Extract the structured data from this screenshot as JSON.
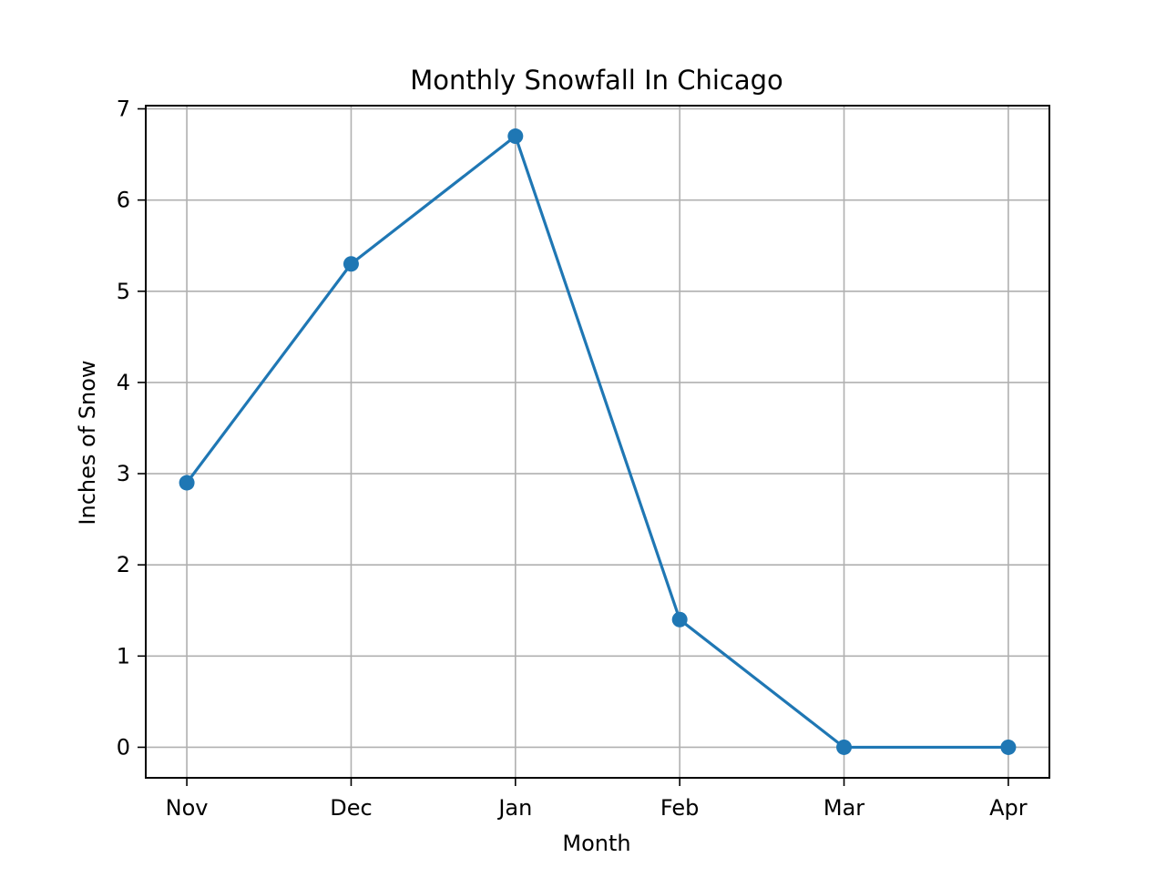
{
  "chart_data": {
    "type": "line",
    "title": "Monthly Snowfall In Chicago",
    "xlabel": "Month",
    "ylabel": "Inches of Snow",
    "categories": [
      "Nov",
      "Dec",
      "Jan",
      "Feb",
      "Mar",
      "Apr"
    ],
    "series": [
      {
        "values": [
          2.9,
          5.3,
          6.7,
          1.4,
          0,
          0
        ],
        "color": "#1f77b4",
        "marker": "circle"
      }
    ],
    "ylim": [
      -0.335,
      7.035
    ],
    "yticks": [
      0,
      1,
      2,
      3,
      4,
      5,
      6,
      7
    ],
    "grid": true,
    "legend": "none"
  }
}
